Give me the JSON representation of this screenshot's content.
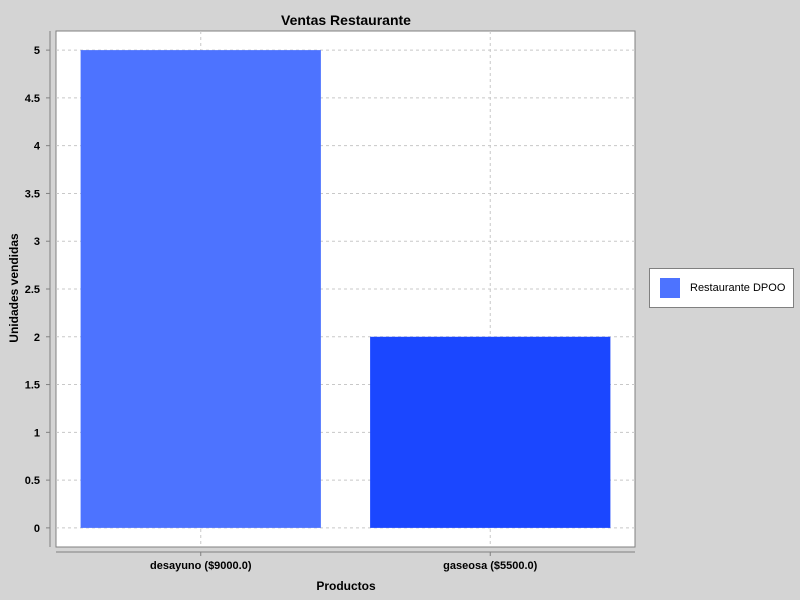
{
  "chart_data": {
    "type": "bar",
    "title": "Ventas Restaurante",
    "xlabel": "Productos",
    "ylabel": "Unidades vendidas",
    "categories": [
      "desayuno ($9000.0)",
      "gaseosa ($5500.0)"
    ],
    "series": [
      {
        "name": "Restaurante DPOO",
        "values": [
          5,
          2
        ],
        "bar_colors": [
          "#4d73ff",
          "#1b47ff"
        ]
      }
    ],
    "ylim": [
      -0.2,
      5.2
    ],
    "yticks": [
      "0",
      "0.5",
      "1",
      "1.5",
      "2",
      "2.5",
      "3",
      "3.5",
      "4",
      "4.5",
      "5"
    ],
    "grid": true,
    "legend_position": "right",
    "legend_swatch_color": "#4d73ff"
  }
}
